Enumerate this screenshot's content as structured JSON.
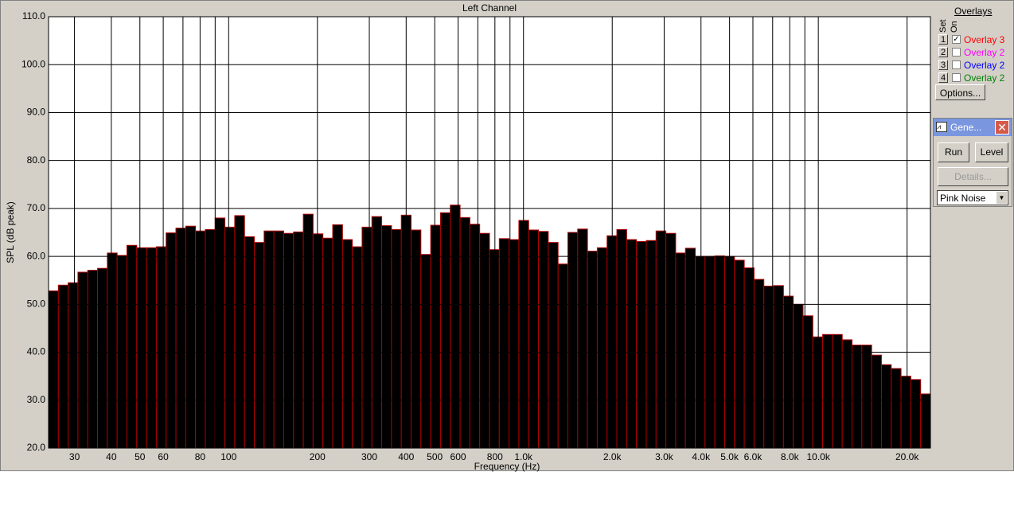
{
  "chart_data": {
    "type": "bar",
    "title": "Left Channel",
    "y_label": "SPL (dB peak)",
    "x_label": "Frequency (Hz)",
    "values": [
      52.8,
      54,
      54.5,
      56.7,
      57.1,
      57.5,
      60.7,
      60.2,
      62.3,
      61.8,
      61.8,
      62,
      64.9,
      65.9,
      66.3,
      65.3,
      65.6,
      68,
      66.1,
      68.5,
      64.1,
      62.9,
      65.3,
      65.3,
      64.8,
      65.1,
      68.8,
      64.7,
      63.8,
      66.6,
      63.5,
      62,
      66.1,
      68.3,
      66.4,
      65.6,
      68.6,
      65.5,
      60.4,
      66.5,
      69.1,
      70.7,
      68.1,
      66.7,
      64.8,
      61.4,
      63.7,
      63.5,
      67.5,
      65.5,
      65.2,
      62.9,
      58.4,
      65,
      65.7,
      61.1,
      61.8,
      64.3,
      65.6,
      63.5,
      63.1,
      63.3,
      65.3,
      64.8,
      60.7,
      61.7,
      60,
      60,
      60.1,
      60,
      59.2,
      57.6,
      55.2,
      53.8,
      53.9,
      51.7,
      50,
      47.6,
      43.2,
      43.7,
      43.7,
      42.6,
      41.5,
      41.5,
      39.4,
      37.4,
      36.6,
      35,
      34.3,
      31.3
    ],
    "color": "#000000",
    "edge_color": "#b00000",
    "ylim": [
      20,
      110
    ],
    "yticks": [
      {
        "value": 20,
        "label": "20.0"
      },
      {
        "value": 30,
        "label": "30.0"
      },
      {
        "value": 40,
        "label": "40.0"
      },
      {
        "value": 50,
        "label": "50.0"
      },
      {
        "value": 60,
        "label": "60.0"
      },
      {
        "value": 70,
        "label": "70.0"
      },
      {
        "value": 80,
        "label": "80.0"
      },
      {
        "value": 90,
        "label": "90.0"
      },
      {
        "value": 100,
        "label": "100.0"
      },
      {
        "value": 110,
        "label": "110.0"
      }
    ],
    "xscale": "log",
    "xlim": [
      24.5,
      24000
    ],
    "xticks": [
      30,
      40,
      50,
      60,
      80,
      100,
      200,
      300,
      400,
      500,
      600,
      800,
      {
        "value": 1000,
        "label": "1.0k"
      },
      {
        "value": 2000,
        "label": "2.0k"
      },
      {
        "value": 3000,
        "label": "3.0k"
      },
      {
        "value": 4000,
        "label": "4.0k"
      },
      {
        "value": 5000,
        "label": "5.0k"
      },
      {
        "value": 6000,
        "label": "6.0k"
      },
      {
        "value": 8000,
        "label": "8.0k"
      },
      {
        "value": 10000,
        "label": "10.0k"
      },
      {
        "value": 20000,
        "label": "20.0k"
      }
    ],
    "xminor": [
      70,
      90,
      700,
      900,
      7000,
      9000
    ],
    "grid": true
  },
  "panel": {
    "title": "Overlays",
    "set_label": "Set",
    "on_label": "On",
    "overlays": [
      {
        "set": "1",
        "name": "Overlay 3",
        "color": "#ff0000",
        "checked": true
      },
      {
        "set": "2",
        "name": "Overlay 2",
        "color": "#ff00ff",
        "checked": false
      },
      {
        "set": "3",
        "name": "Overlay 2",
        "color": "#0000ff",
        "checked": false
      },
      {
        "set": "4",
        "name": "Overlay 2",
        "color": "#008000",
        "checked": false
      }
    ],
    "options": "Options...",
    "generator": {
      "title": "Gene...",
      "run": "Run",
      "level": "Level",
      "details": "Details...",
      "signal": "Pink Noise"
    }
  }
}
